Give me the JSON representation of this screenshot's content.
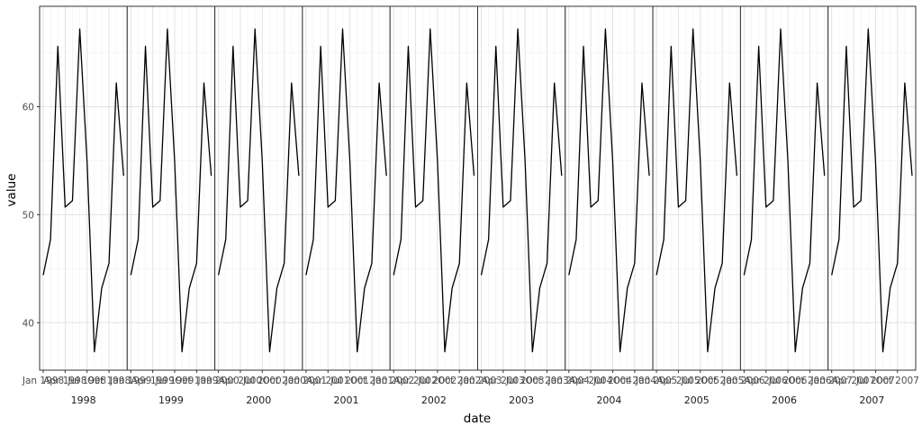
{
  "chart_data": {
    "type": "line",
    "facet_by": "year",
    "facets": [
      "1998",
      "1999",
      "2000",
      "2001",
      "2002",
      "2003",
      "2004",
      "2005",
      "2006",
      "2007"
    ],
    "xlabel": "date",
    "ylabel": "value",
    "ylim": [
      35.6,
      69.3
    ],
    "yticks": [
      40,
      50,
      60
    ],
    "x_month_ticks": [
      "Jan",
      "Apr",
      "Jul",
      "Oct"
    ],
    "grid": "on",
    "line_color": "#000000",
    "series": [
      {
        "months": [
          1,
          2,
          3,
          4,
          5,
          6,
          7,
          8,
          9,
          10,
          11,
          12
        ],
        "values_by_month": [
          44.4,
          47.7,
          65.6,
          50.7,
          51.3,
          67.2,
          54.9,
          37.3,
          43.2,
          45.5,
          62.2,
          53.6
        ]
      }
    ]
  }
}
